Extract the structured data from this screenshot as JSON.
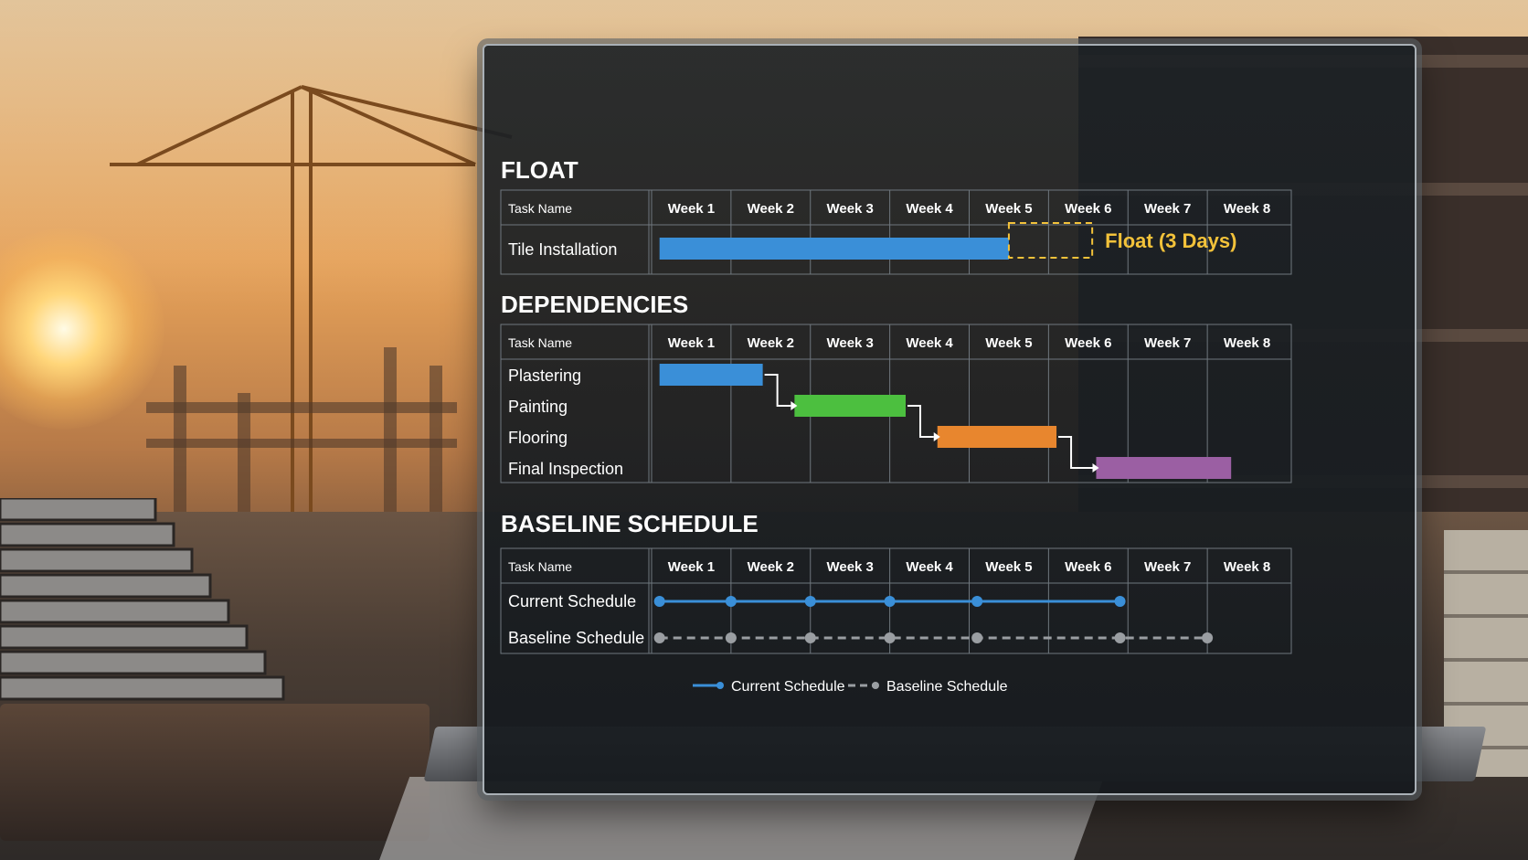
{
  "chart_data": [
    {
      "type": "gantt",
      "title": "FLOAT",
      "column_header": "Task Name",
      "weeks": [
        "Week 1",
        "Week 2",
        "Week 3",
        "Week 4",
        "Week 5",
        "Week 6",
        "Week 7",
        "Week 8"
      ],
      "tasks": [
        {
          "name": "Tile Installation",
          "start_week": 0.1,
          "end_week": 4.5,
          "color": "#3a8fd8"
        }
      ],
      "float": {
        "label": "Float (3 Days)",
        "start_week": 4.5,
        "end_week": 5.55,
        "color": "#f3c23a"
      }
    },
    {
      "type": "gantt",
      "title": "DEPENDENCIES",
      "column_header": "Task Name",
      "weeks": [
        "Week 1",
        "Week 2",
        "Week 3",
        "Week 4",
        "Week 5",
        "Week 6",
        "Week 7",
        "Week 8"
      ],
      "tasks": [
        {
          "name": "Plastering",
          "start_week": 0.1,
          "end_week": 1.4,
          "color": "#3a8fd8"
        },
        {
          "name": "Painting",
          "start_week": 1.8,
          "end_week": 3.2,
          "color": "#4cbf3f"
        },
        {
          "name": "Flooring",
          "start_week": 3.6,
          "end_week": 5.1,
          "color": "#e8862e"
        },
        {
          "name": "Final Inspection",
          "start_week": 5.6,
          "end_week": 7.3,
          "color": "#9b5fa3"
        }
      ],
      "dependencies": [
        [
          "Plastering",
          "Painting"
        ],
        [
          "Painting",
          "Flooring"
        ],
        [
          "Flooring",
          "Final Inspection"
        ]
      ]
    },
    {
      "type": "line",
      "title": "BASELINE SCHEDULE",
      "column_header": "Task Name",
      "weeks": [
        "Week 1",
        "Week 2",
        "Week 3",
        "Week 4",
        "Week 5",
        "Week 6",
        "Week 7",
        "Week 8"
      ],
      "series": [
        {
          "name": "Current Schedule",
          "style": "solid",
          "color": "#3a8fd8",
          "points": [
            0.1,
            1.0,
            2.0,
            3.0,
            4.1,
            5.9
          ]
        },
        {
          "name": "Baseline Schedule",
          "style": "dashed",
          "color": "#9a9ea2",
          "points": [
            0.1,
            1.0,
            2.0,
            3.0,
            4.1,
            5.9,
            7.0
          ]
        }
      ],
      "legend": "bottom-center"
    }
  ]
}
